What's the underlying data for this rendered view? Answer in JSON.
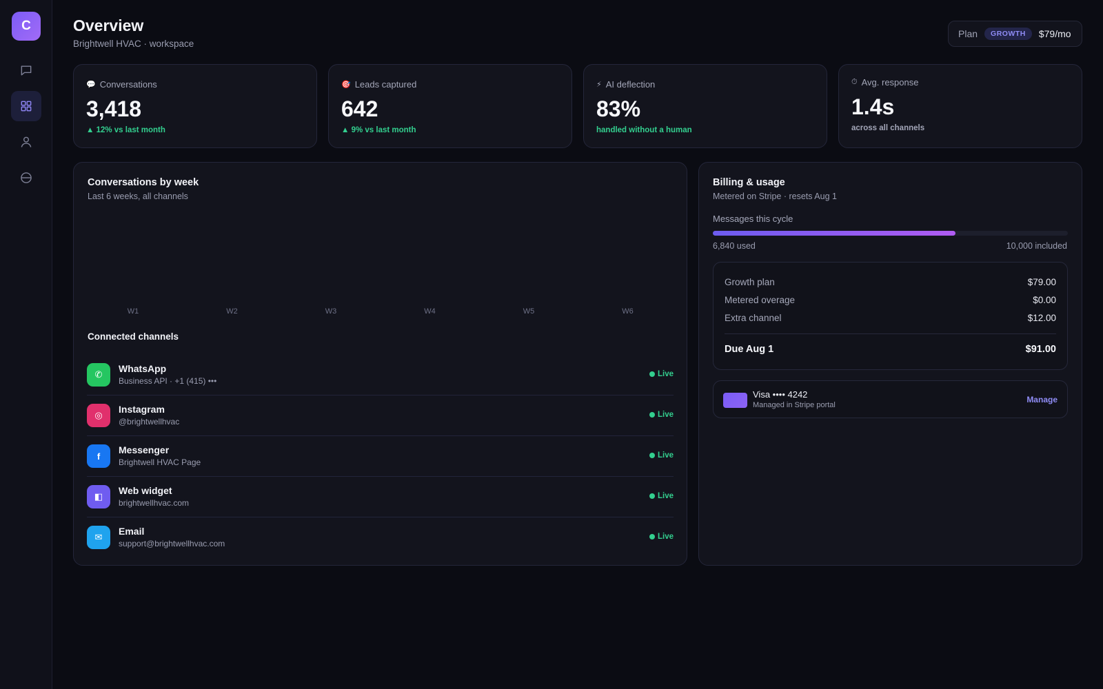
{
  "sidebar": {
    "logo_letter": "C",
    "items": [
      {
        "icon": "chat-icon"
      },
      {
        "icon": "grid-icon",
        "active": true
      },
      {
        "icon": "user-icon"
      },
      {
        "icon": "globe-icon"
      }
    ]
  },
  "header": {
    "title": "Overview",
    "subtitle": "Brightwell HVAC · workspace",
    "plan_label": "Plan",
    "plan_badge": "GROWTH",
    "plan_price": "$79/mo"
  },
  "stats": [
    {
      "icon": "💬",
      "label": "Conversations",
      "value": "3,418",
      "note": "▲ 12% vs last month"
    },
    {
      "icon": "🎯",
      "label": "Leads captured",
      "value": "642",
      "note": "▲ 9% vs last month"
    },
    {
      "icon": "⚡",
      "label": "AI deflection",
      "value": "83%",
      "note": "handled without a human"
    },
    {
      "icon": "⏱",
      "label": "Avg. response",
      "value": "1.4s",
      "note": "across all channels"
    }
  ],
  "chart": {
    "title": "Conversations by week",
    "subtitle": "Last 6 weeks, all channels"
  },
  "chart_data": {
    "type": "bar",
    "categories": [
      "W1",
      "W2",
      "W3",
      "W4",
      "W5",
      "W6"
    ]
  },
  "channels": {
    "title": "Connected channels",
    "items": [
      {
        "name": "WhatsApp",
        "detail": "Business API · +1 (415) •••",
        "status": "Live",
        "glyph": "✆",
        "color": "#25c661"
      },
      {
        "name": "Instagram",
        "detail": "@brightwellhvac",
        "status": "Live",
        "glyph": "◎",
        "color": "#e1306c"
      },
      {
        "name": "Messenger",
        "detail": "Brightwell HVAC Page",
        "status": "Live",
        "glyph": "f",
        "color": "#1877f2"
      },
      {
        "name": "Web widget",
        "detail": "brightwellhvac.com",
        "status": "Live",
        "glyph": "◧",
        "color": "#6f5cf0"
      },
      {
        "name": "Email",
        "detail": "support@brightwellhvac.com",
        "status": "Live",
        "glyph": "✉",
        "color": "#1fa3ee"
      }
    ]
  },
  "billing": {
    "title": "Billing & usage",
    "subtitle": "Metered on Stripe · resets Aug 1",
    "usage_label": "Messages this cycle",
    "usage_fraction": 0.684,
    "used_text": "6,840 used",
    "included_text": "10,000 included",
    "lines": [
      {
        "label": "Growth plan",
        "amount": "$79.00"
      },
      {
        "label": "Metered overage",
        "amount": "$0.00"
      },
      {
        "label": "Extra channel",
        "amount": "$12.00"
      }
    ],
    "total_label": "Due Aug 1",
    "total_amount": "$91.00",
    "card_name": "Visa •••• 4242",
    "card_sub": "Managed in Stripe portal",
    "manage_label": "Manage"
  },
  "colors": {
    "accent": "#8f8cf5",
    "success": "#33cf8f",
    "background": "#0b0c13",
    "panel": "#13141d"
  }
}
